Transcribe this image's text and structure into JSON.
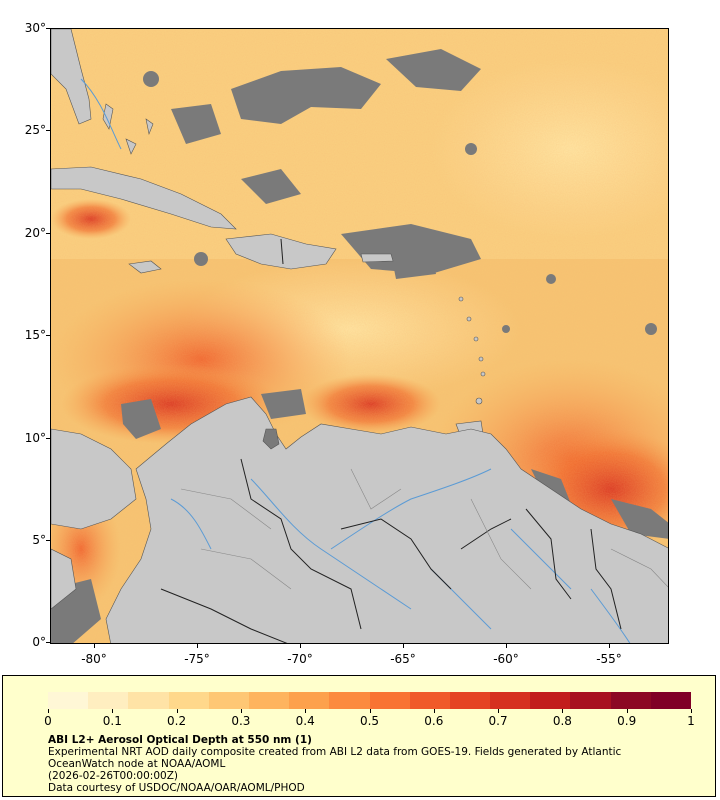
{
  "map": {
    "lat_labels": [
      "30°",
      "25°",
      "20°",
      "15°",
      "10°",
      "5°",
      "0°"
    ],
    "lon_labels": [
      "-80°",
      "-75°",
      "-70°",
      "-65°",
      "-60°",
      "-55°"
    ],
    "lat_range": [
      0,
      30
    ],
    "lon_range": [
      -82.2,
      -52.2
    ],
    "colors": {
      "land": "#c8c8c8",
      "cloud": "#7a7a7a",
      "river": "#5b9bd5",
      "border": "#222222"
    }
  },
  "legend": {
    "colorbar_labels": [
      "0",
      "0.1",
      "0.2",
      "0.3",
      "0.4",
      "0.5",
      "0.6",
      "0.7",
      "0.8",
      "0.9",
      "1"
    ],
    "colorbar_colors": [
      "#fff7d6",
      "#ffeec0",
      "#ffe3a6",
      "#ffd88b",
      "#fec774",
      "#feb45e",
      "#fda14c",
      "#fc8a3e",
      "#f97332",
      "#f05a2a",
      "#e54424",
      "#d6301f",
      "#c21d1c",
      "#a8101f",
      "#8c0824",
      "#800026"
    ],
    "title": "ABI L2+ Aerosol Optical Depth at 550 nm (1)",
    "line1": "Experimental NRT AOD daily composite created from ABI L2 data from GOES-19. Fields generated by Atlantic",
    "line2": "OceanWatch node at NOAA/AOML",
    "line3": "(2026-02-26T00:00:00Z)",
    "line4": "Data courtesy of USDOC/NOAA/OAR/AOML/PHOD"
  }
}
